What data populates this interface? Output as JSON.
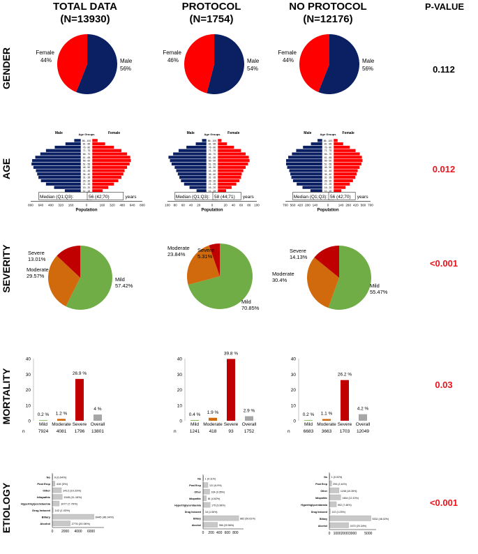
{
  "headers": {
    "total": {
      "title": "TOTAL DATA",
      "n": "(N=13930)"
    },
    "protocol": {
      "title": "PROTOCOL",
      "n": "(N=1754)"
    },
    "no_protocol": {
      "title": "NO PROTOCOL",
      "n": "(N=12176)"
    },
    "pvalue": "P-VALUE"
  },
  "rows": [
    {
      "label": "GENDER",
      "pvalue": "0.112",
      "pcolor": "#000000"
    },
    {
      "label": "AGE",
      "pvalue": "0.012",
      "pcolor": "#e8141b"
    },
    {
      "label": "SEVERITY",
      "pvalue": "<0.001",
      "pcolor": "#e8141b"
    },
    {
      "label": "MORTALITY",
      "pvalue": "0.03",
      "pcolor": "#e8141b"
    },
    {
      "label": "ETIOLOGY",
      "pvalue": "<0.001",
      "pcolor": "#e8141b"
    }
  ],
  "colors": {
    "male": "#0b1f63",
    "female": "#ff0000",
    "mild": "#70ad47",
    "moderate": "#d06a0d",
    "severe": "#c00000",
    "overall": "#a6a6a6",
    "etiology_bar": "#c8c8c8"
  },
  "age_groups": [
    "86 - 100",
    "81 - 85",
    "76 - 80",
    "71 - 75",
    "66 - 70",
    "61 - 65",
    "56 - 60",
    "51 - 55",
    "46 - 50",
    "41 - 45",
    "36 - 40",
    "31 - 35",
    "26 - 30",
    "21 - 25",
    "16 - 20",
    "11 - 15",
    "6 - 10",
    "0 - 5"
  ],
  "pyramid_labels": {
    "male": "Male",
    "female": "Female",
    "groups": "Age Groups",
    "median_label": "Median (Q1;Q3):",
    "years": "years",
    "xlabel": "Population"
  },
  "mortality_categories": [
    "Mild",
    "Moderate",
    "Severe",
    "Overall"
  ],
  "mortality_n_label": "n",
  "etiology_categories": [
    "No",
    "Post Ercp",
    "Other",
    "Idiopathic",
    "Hypertriglyceridaemia",
    "Drug Induced",
    "Biliary",
    "Alcohol"
  ],
  "chart_data": [
    {
      "id": "gender-total",
      "type": "pie",
      "labels": [
        "Male",
        "Female"
      ],
      "values": [
        56,
        44
      ],
      "value_labels": [
        "56%",
        "44%"
      ]
    },
    {
      "id": "gender-protocol",
      "type": "pie",
      "labels": [
        "Male",
        "Female"
      ],
      "values": [
        54,
        46
      ],
      "value_labels": [
        "54%",
        "46%"
      ]
    },
    {
      "id": "gender-noprotocol",
      "type": "pie",
      "labels": [
        "Male",
        "Female"
      ],
      "values": [
        56,
        44
      ],
      "value_labels": [
        "56%",
        "44%"
      ]
    },
    {
      "id": "age-total",
      "type": "bar",
      "orientation": "pyramid",
      "median": "56 (42;70)",
      "xticks": [
        "800",
        "640",
        "480",
        "320",
        "160",
        "0",
        "160",
        "320",
        "480",
        "640",
        "800"
      ],
      "xlim": [
        0,
        800
      ],
      "male": [
        110,
        250,
        420,
        560,
        650,
        730,
        780,
        790,
        760,
        720,
        700,
        680,
        640,
        560,
        430,
        260,
        130,
        80
      ],
      "female": [
        90,
        210,
        350,
        470,
        560,
        610,
        620,
        600,
        560,
        520,
        500,
        470,
        420,
        350,
        260,
        170,
        90,
        60
      ]
    },
    {
      "id": "age-protocol",
      "type": "bar",
      "orientation": "pyramid",
      "median": "58 (44;71)",
      "xticks": [
        "100",
        "80",
        "60",
        "40",
        "20",
        "0",
        "20",
        "40",
        "60",
        "80",
        "100"
      ],
      "xlim": [
        0,
        100
      ],
      "male": [
        12,
        28,
        52,
        72,
        86,
        98,
        94,
        90,
        82,
        78,
        74,
        70,
        66,
        58,
        44,
        26,
        14,
        8
      ],
      "female": [
        10,
        24,
        42,
        60,
        72,
        80,
        82,
        78,
        72,
        66,
        62,
        60,
        56,
        48,
        36,
        22,
        12,
        6
      ]
    },
    {
      "id": "age-noprotocol",
      "type": "bar",
      "orientation": "pyramid",
      "median": "56 (42;70)",
      "xticks": [
        "700",
        "560",
        "420",
        "280",
        "140",
        "0",
        "140",
        "280",
        "420",
        "560",
        "700"
      ],
      "xlim": [
        0,
        700
      ],
      "male": [
        95,
        220,
        370,
        500,
        580,
        650,
        690,
        690,
        670,
        630,
        610,
        590,
        560,
        490,
        380,
        230,
        115,
        70
      ],
      "female": [
        80,
        185,
        310,
        420,
        500,
        540,
        550,
        530,
        495,
        460,
        440,
        415,
        370,
        310,
        230,
        150,
        80,
        50
      ]
    },
    {
      "id": "severity-total",
      "type": "pie",
      "labels": [
        "Mild",
        "Moderate",
        "Severe"
      ],
      "values": [
        57.42,
        29.57,
        13.01
      ],
      "value_labels": [
        "57.42%",
        "29.57%",
        "13.01%"
      ]
    },
    {
      "id": "severity-protocol",
      "type": "pie",
      "labels": [
        "Mild",
        "Moderate",
        "Severe"
      ],
      "values": [
        70.85,
        23.84,
        5.31
      ],
      "value_labels": [
        "70.85%",
        "23.84%",
        "5.31%"
      ]
    },
    {
      "id": "severity-noprotocol",
      "type": "pie",
      "labels": [
        "Mild",
        "Moderate",
        "Severe"
      ],
      "values": [
        55.47,
        30.4,
        14.13
      ],
      "value_labels": [
        "55.47%",
        "30.4%",
        "14.13%"
      ]
    },
    {
      "id": "mortality-total",
      "type": "bar",
      "ylim": [
        0,
        40
      ],
      "yticks": [
        "0",
        "10",
        "20",
        "30",
        "40"
      ],
      "values": [
        0.2,
        1.2,
        26.9,
        4
      ],
      "value_labels": [
        "0.2 %",
        "1.2 %",
        "26.9 %",
        "4 %"
      ],
      "n": [
        "7924",
        "4081",
        "1796",
        "13801"
      ]
    },
    {
      "id": "mortality-protocol",
      "type": "bar",
      "ylim": [
        0,
        40
      ],
      "yticks": [
        "0",
        "10",
        "20",
        "30",
        "40"
      ],
      "values": [
        0.4,
        1.9,
        39.8,
        2.9
      ],
      "value_labels": [
        "0.4 %",
        "1.9 %",
        "39.8 %",
        "2.9 %"
      ],
      "n": [
        "1241",
        "418",
        "93",
        "1752"
      ]
    },
    {
      "id": "mortality-noprotocol",
      "type": "bar",
      "ylim": [
        0,
        40
      ],
      "yticks": [
        "0",
        "10",
        "20",
        "30",
        "40"
      ],
      "values": [
        0.2,
        1.1,
        26.2,
        4.2
      ],
      "value_labels": [
        "0.2 %",
        "1.1 %",
        "26.2 %",
        "4.2 %"
      ],
      "n": [
        "6683",
        "3663",
        "1703",
        "12049"
      ]
    },
    {
      "id": "etiology-total",
      "type": "bar",
      "orientation": "horizontal",
      "xlim": [
        0,
        8000
      ],
      "xticks": [
        "0",
        "2000",
        "4000",
        "6000"
      ],
      "xtick_values": [
        0,
        2000,
        4000,
        6000
      ],
      "values": [
        9,
        415,
        1412,
        1545,
        1077,
        142,
        6445,
        2776
      ],
      "value_labels": [
        "9 (0.04%)",
        "415 (3%)",
        "1412 (10.23%)",
        "1545 (11.16%)",
        "1077 (7.76%)",
        "142 (1.03%)",
        "6445 (46.94%)",
        "2776 (20.06%)"
      ]
    },
    {
      "id": "etiology-protocol",
      "type": "bar",
      "orientation": "horizontal",
      "xlim": [
        0,
        1000
      ],
      "xticks": [
        "0",
        "200",
        "400",
        "600",
        "800"
      ],
      "xtick_values": [
        0,
        200,
        400,
        600,
        800
      ],
      "values": [
        1,
        121,
        164,
        81,
        175,
        16,
        882,
        356
      ],
      "value_labels": [
        "1 (0.11%)",
        "121 (6.9%)",
        "164 (9.35%)",
        "81 (4.62%)",
        "175 (9.98%)",
        "16 (1.06%)",
        "882 (50.61%)",
        "356 (20.56%)"
      ]
    },
    {
      "id": "etiology-noprotocol",
      "type": "bar",
      "orientation": "horizontal",
      "xlim": [
        0,
        6000
      ],
      "xticks": [
        "0",
        "1000",
        "2000",
        "3000",
        "5000"
      ],
      "xtick_values": [
        0,
        1000,
        2000,
        3000,
        5000
      ],
      "values": [
        1,
        294,
        1248,
        1464,
        902,
        122,
        5332,
        2470
      ],
      "value_labels": [
        "1 (0.02%)",
        "294 (2.44%)",
        "1248 (10.35%)",
        "1464 (12.10%)",
        "902 (7.48%)",
        "122 (1.03%)",
        "5332 (46.02%)",
        "2470 (20.34%)"
      ]
    }
  ]
}
